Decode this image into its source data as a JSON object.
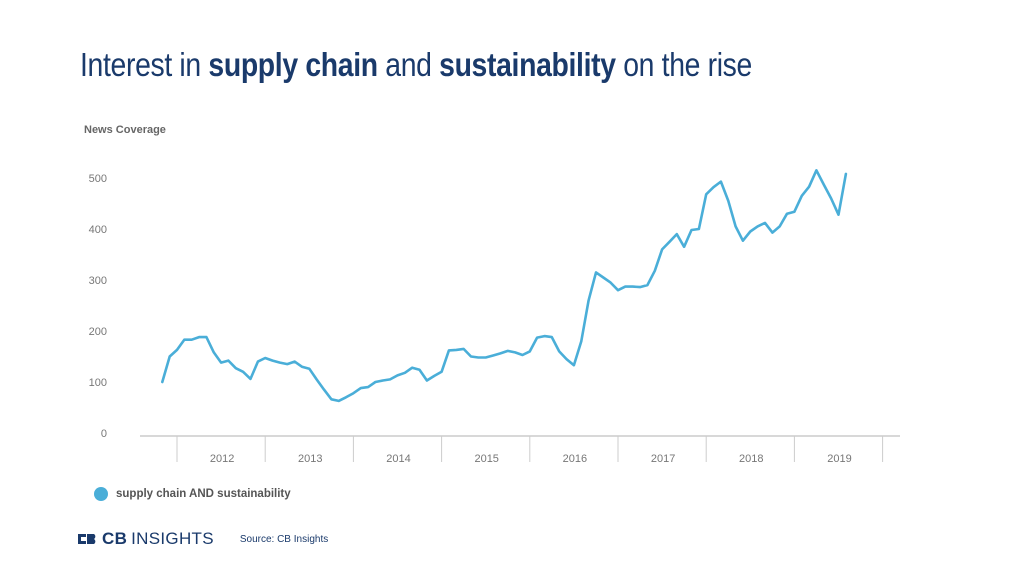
{
  "title": {
    "part1": "Interest in ",
    "bold1": "supply chain",
    "part2": " and ",
    "bold2": "sustainability",
    "part3": " on the rise"
  },
  "legend": {
    "label": "supply chain AND sustainability"
  },
  "footer": {
    "logo_cb": "CB",
    "logo_insights": "INSIGHTS",
    "source": "Source: CB Insights"
  },
  "colors": {
    "line": "#4aaed8",
    "title": "#1a3a6b",
    "axis": "#cccccc",
    "tick_text": "#777777"
  },
  "chart_data": {
    "type": "line",
    "ylabel": "News Coverage",
    "xlabel": "",
    "ylim": [
      0,
      500
    ],
    "yticks": [
      0,
      100,
      200,
      300,
      400,
      500
    ],
    "xticks": [
      "2012",
      "2013",
      "2014",
      "2015",
      "2016",
      "2017",
      "2018",
      "2019"
    ],
    "grid": false,
    "legend_position": "bottom-left",
    "series": [
      {
        "name": "supply chain AND sustainability",
        "x_start": "2011-11",
        "x_step": "month",
        "values": [
          100,
          150,
          163,
          183,
          183,
          188,
          188,
          158,
          138,
          142,
          127,
          120,
          106,
          140,
          147,
          142,
          138,
          135,
          140,
          130,
          126,
          105,
          85,
          66,
          63,
          70,
          78,
          88,
          90,
          100,
          103,
          105,
          113,
          118,
          128,
          124,
          103,
          112,
          120,
          162,
          163,
          165,
          150,
          148,
          148,
          152,
          156,
          161,
          158,
          153,
          160,
          187,
          190,
          188,
          160,
          145,
          133,
          180,
          260,
          315,
          305,
          295,
          280,
          287,
          287,
          286,
          290,
          318,
          360,
          375,
          390,
          365,
          398,
          400,
          468,
          482,
          493,
          455,
          405,
          377,
          395,
          405,
          412,
          393,
          405,
          430,
          434,
          465,
          483,
          515,
          487,
          460,
          428,
          508
        ]
      }
    ]
  }
}
